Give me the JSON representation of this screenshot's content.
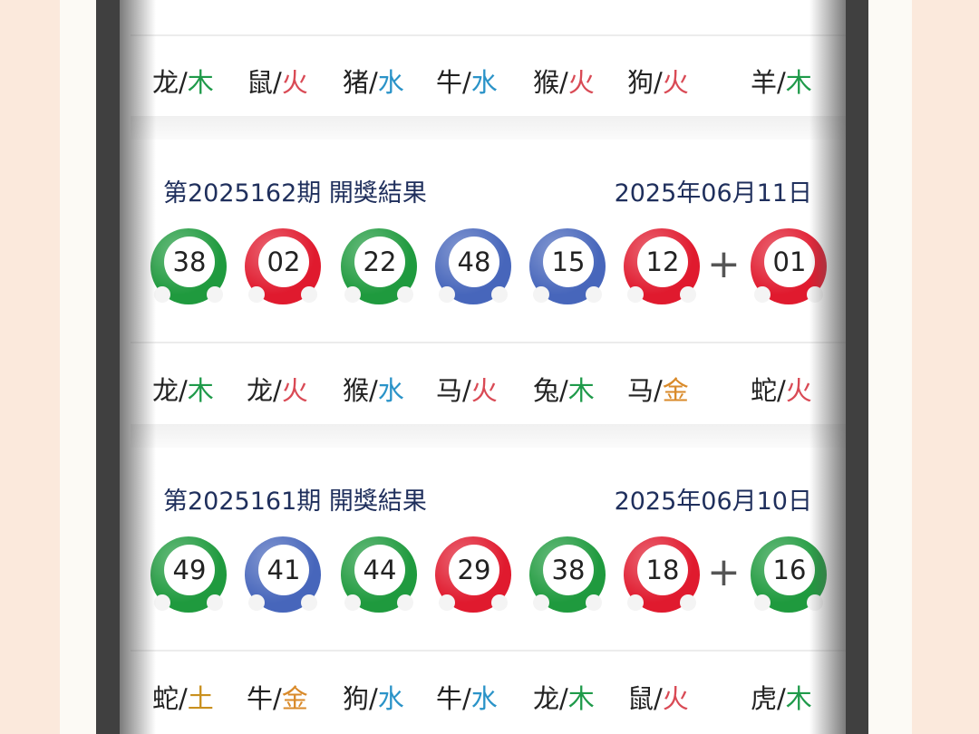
{
  "colors": {
    "green": "#1f9a3e",
    "red": "#e01a2e",
    "blue": "#4766bb",
    "wood": "#1f9a4a",
    "fire": "#d94a55",
    "water": "#2a93c8",
    "metal": "#d98a2a",
    "earth": "#c9901e"
  },
  "top_zodiac": [
    {
      "animal": "龙",
      "element": "木",
      "type": "wood"
    },
    {
      "animal": "鼠",
      "element": "火",
      "type": "fire"
    },
    {
      "animal": "猪",
      "element": "水",
      "type": "water"
    },
    {
      "animal": "牛",
      "element": "水",
      "type": "water"
    },
    {
      "animal": "猴",
      "element": "火",
      "type": "fire"
    },
    {
      "animal": "狗",
      "element": "火",
      "type": "fire"
    },
    {
      "animal": "羊",
      "element": "木",
      "type": "wood"
    }
  ],
  "draws": [
    {
      "title": "第2025162期 開獎結果",
      "date": "2025年06月11日",
      "balls": [
        {
          "n": "38",
          "c": "green"
        },
        {
          "n": "02",
          "c": "red"
        },
        {
          "n": "22",
          "c": "green"
        },
        {
          "n": "48",
          "c": "blue"
        },
        {
          "n": "15",
          "c": "blue"
        },
        {
          "n": "12",
          "c": "red"
        }
      ],
      "special": {
        "n": "01",
        "c": "red"
      },
      "zodiac": [
        {
          "animal": "龙",
          "element": "木",
          "type": "wood"
        },
        {
          "animal": "龙",
          "element": "火",
          "type": "fire"
        },
        {
          "animal": "猴",
          "element": "水",
          "type": "water"
        },
        {
          "animal": "马",
          "element": "火",
          "type": "fire"
        },
        {
          "animal": "兔",
          "element": "木",
          "type": "wood"
        },
        {
          "animal": "马",
          "element": "金",
          "type": "metal"
        },
        {
          "animal": "蛇",
          "element": "火",
          "type": "fire"
        }
      ]
    },
    {
      "title": "第2025161期 開獎結果",
      "date": "2025年06月10日",
      "balls": [
        {
          "n": "49",
          "c": "green"
        },
        {
          "n": "41",
          "c": "blue"
        },
        {
          "n": "44",
          "c": "green"
        },
        {
          "n": "29",
          "c": "red"
        },
        {
          "n": "38",
          "c": "green"
        },
        {
          "n": "18",
          "c": "red"
        }
      ],
      "special": {
        "n": "16",
        "c": "green"
      },
      "zodiac": [
        {
          "animal": "蛇",
          "element": "土",
          "type": "earth"
        },
        {
          "animal": "牛",
          "element": "金",
          "type": "metal"
        },
        {
          "animal": "狗",
          "element": "水",
          "type": "water"
        },
        {
          "animal": "牛",
          "element": "水",
          "type": "water"
        },
        {
          "animal": "龙",
          "element": "木",
          "type": "wood"
        },
        {
          "animal": "鼠",
          "element": "火",
          "type": "fire"
        },
        {
          "animal": "虎",
          "element": "木",
          "type": "wood"
        }
      ]
    }
  ],
  "plus": "+"
}
